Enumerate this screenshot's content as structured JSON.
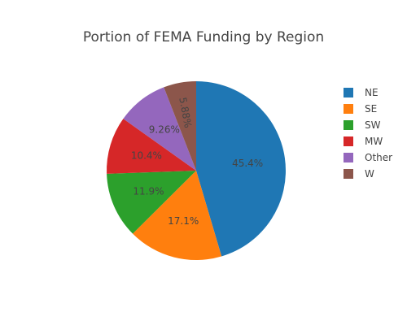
{
  "chart_data": {
    "type": "pie",
    "title": "Portion of FEMA Funding by Region",
    "categories": [
      "NE",
      "SE",
      "SW",
      "MW",
      "Other",
      "W"
    ],
    "values": [
      45.4,
      17.1,
      11.9,
      10.4,
      9.26,
      5.88
    ],
    "labels": [
      "45.4%",
      "17.1%",
      "11.9%",
      "10.4%",
      "9.26%",
      "5.88%"
    ],
    "colors": [
      "#1f77b4",
      "#ff7f0e",
      "#2ca02c",
      "#d62728",
      "#9467bd",
      "#8c564b"
    ],
    "direction": "clockwise",
    "start_angle": "12 o'clock",
    "legend": {
      "placement": "top-right",
      "items": [
        "NE",
        "SE",
        "SW",
        "MW",
        "Other",
        "W"
      ]
    }
  }
}
